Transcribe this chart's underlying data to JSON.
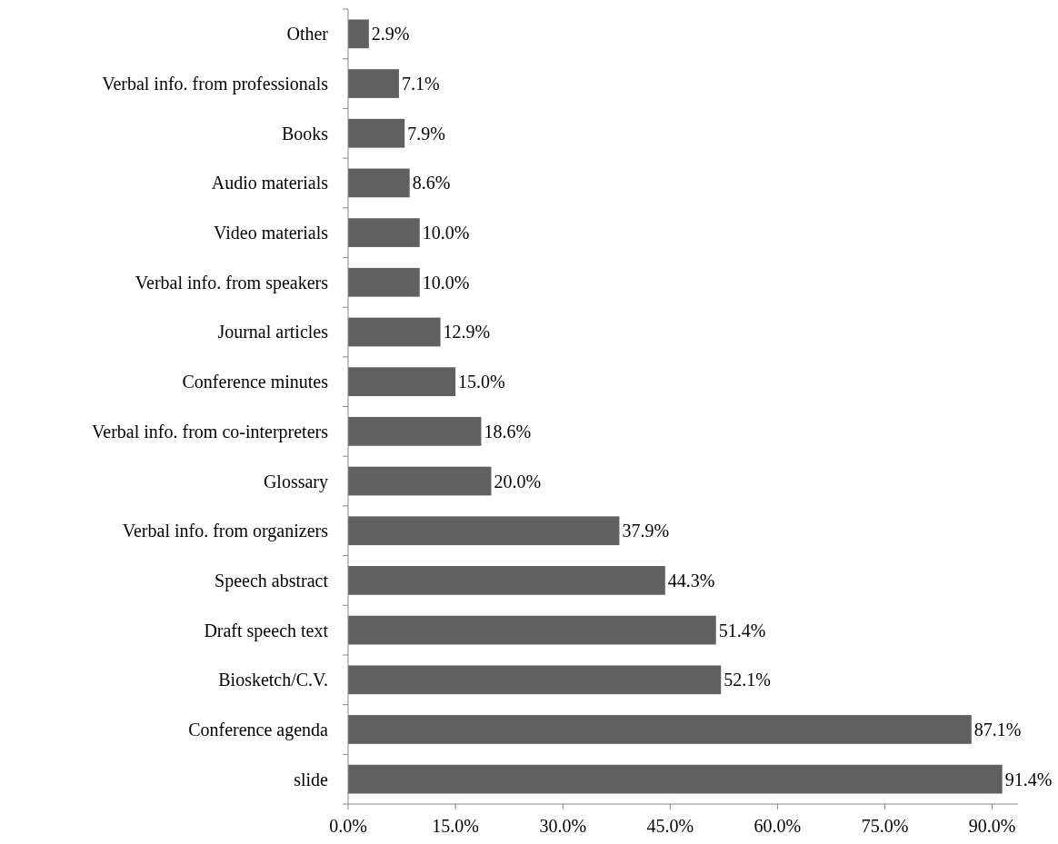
{
  "chart_data": {
    "type": "bar",
    "orientation": "horizontal",
    "categories": [
      "Other",
      "Verbal info. from professionals",
      "Books",
      "Audio materials",
      "Video materials",
      "Verbal info. from speakers",
      "Journal articles",
      "Conference minutes",
      "Verbal info. from co-interpreters",
      "Glossary",
      "Verbal info. from organizers",
      "Speech abstract",
      "Draft speech text",
      "Biosketch/C.V.",
      "Conference agenda",
      "slide"
    ],
    "values": [
      2.9,
      7.1,
      7.9,
      8.6,
      10.0,
      10.0,
      12.9,
      15.0,
      18.6,
      20.0,
      37.9,
      44.3,
      51.4,
      52.1,
      87.1,
      91.4
    ],
    "value_labels": [
      "2.9%",
      "7.1%",
      "7.9%",
      "8.6%",
      "10.0%",
      "10.0%",
      "12.9%",
      "15.0%",
      "18.6%",
      "20.0%",
      "37.9%",
      "44.3%",
      "51.4%",
      "52.1%",
      "87.1%",
      "91.4%"
    ],
    "color": "#606060",
    "xlim": [
      0,
      93.6
    ],
    "xticks": [
      {
        "value": 0,
        "label": "0.0%"
      },
      {
        "value": 15,
        "label": "15.0%"
      },
      {
        "value": 30,
        "label": "30.0%"
      },
      {
        "value": 45,
        "label": "45.0%"
      },
      {
        "value": 60,
        "label": "60.0%"
      },
      {
        "value": 75,
        "label": "75.0%"
      },
      {
        "value": 90,
        "label": "90.0%"
      }
    ],
    "grid": false
  }
}
